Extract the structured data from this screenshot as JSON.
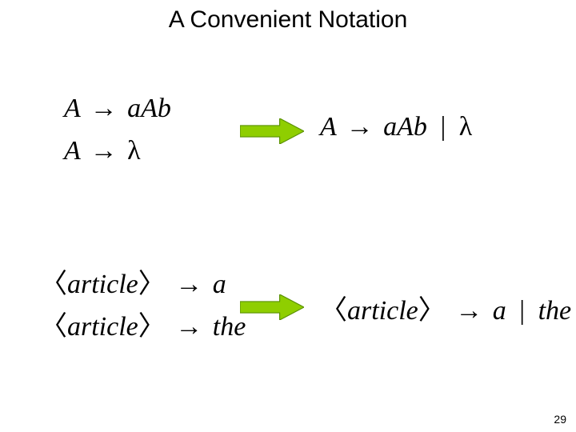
{
  "title": "A Convenient Notation",
  "row1": {
    "left_line1": {
      "lhs": "A",
      "rhs": "aAb"
    },
    "left_line2": {
      "lhs": "A",
      "rhs_lambda": "λ"
    },
    "right": {
      "lhs": "A",
      "rhs_part1": "aAb",
      "pipe": "|",
      "rhs_lambda": "λ"
    }
  },
  "row2": {
    "left_line1": {
      "lhs": "article",
      "rhs": "a"
    },
    "left_line2": {
      "lhs": "article",
      "rhs": "the"
    },
    "right": {
      "lhs": "article",
      "rhs_part1": "a",
      "pipe": "|",
      "rhs_part2": "the"
    }
  },
  "symbols": {
    "production_arrow": "→",
    "angle_left": "〈",
    "angle_right": "〉"
  },
  "big_arrow": {
    "width": 80,
    "height": 32,
    "fill": "#8fce00",
    "stroke": "#5a9100",
    "stroke_width": 1.2
  },
  "page_number": "29",
  "colors": {
    "background": "#ffffff",
    "text": "#000000"
  },
  "typography": {
    "title_font": "Comic Sans MS",
    "title_size_pt": 22,
    "body_font": "Georgia/Times (italic serif)",
    "body_size_pt": 26
  }
}
